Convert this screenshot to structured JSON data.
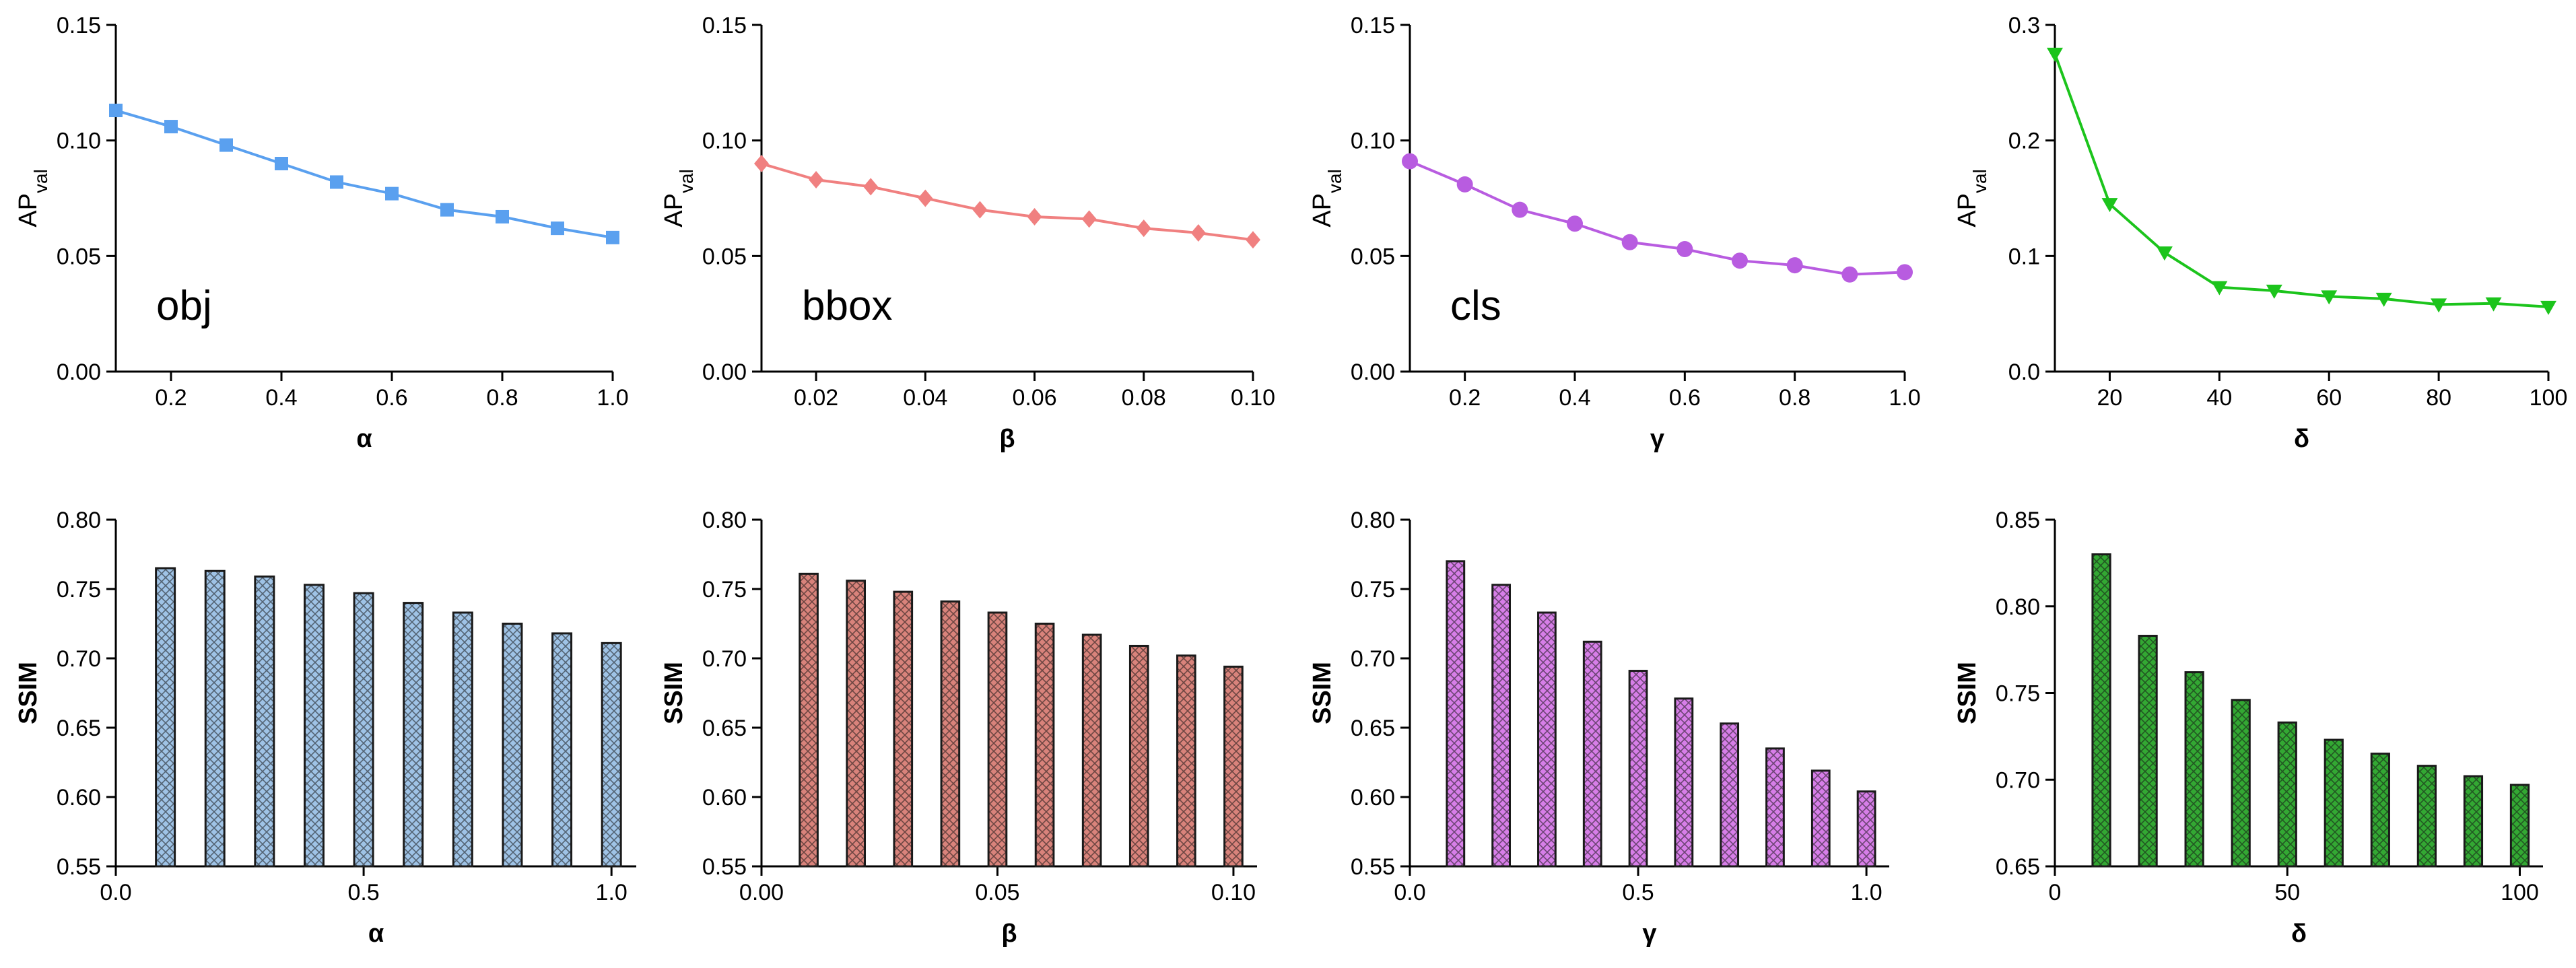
{
  "colors": {
    "blue": "#5aa0ef",
    "red": "#f08080",
    "purple": "#b85ce0",
    "green": "#1cc41c",
    "bar_blue": "#9fc3e6",
    "bar_red": "#d9837b",
    "bar_purple": "#d77ee8",
    "bar_green": "#33a833",
    "axis": "#000000"
  },
  "chart_data": [
    {
      "id": "line-alpha",
      "type": "line",
      "marker": "square",
      "color_key": "blue",
      "annotation": "obj",
      "x": [
        0.1,
        0.2,
        0.3,
        0.4,
        0.5,
        0.6,
        0.7,
        0.8,
        0.9,
        1.0
      ],
      "values": [
        0.113,
        0.106,
        0.098,
        0.09,
        0.082,
        0.077,
        0.07,
        0.067,
        0.062,
        0.058
      ],
      "xlim": [
        0.1,
        1.0
      ],
      "ylim": [
        0,
        0.15
      ],
      "xticks": [
        "0.2",
        "0.4",
        "0.6",
        "0.8",
        "1.0"
      ],
      "xtick_vals": [
        0.2,
        0.4,
        0.6,
        0.8,
        1.0
      ],
      "yticks": [
        "0.00",
        "0.05",
        "0.10",
        "0.15"
      ],
      "ytick_vals": [
        0,
        0.05,
        0.1,
        0.15
      ],
      "xlabel": "α",
      "ylabel_main": "AP",
      "ylabel_sub": "val"
    },
    {
      "id": "line-beta",
      "type": "line",
      "marker": "diamond",
      "color_key": "red",
      "annotation": "bbox",
      "x": [
        0.01,
        0.02,
        0.03,
        0.04,
        0.05,
        0.06,
        0.07,
        0.08,
        0.09,
        0.1
      ],
      "values": [
        0.09,
        0.083,
        0.08,
        0.075,
        0.07,
        0.067,
        0.066,
        0.062,
        0.06,
        0.057
      ],
      "xlim": [
        0.01,
        0.1
      ],
      "ylim": [
        0,
        0.15
      ],
      "xticks": [
        "0.02",
        "0.04",
        "0.06",
        "0.08",
        "0.10"
      ],
      "xtick_vals": [
        0.02,
        0.04,
        0.06,
        0.08,
        0.1
      ],
      "yticks": [
        "0.00",
        "0.05",
        "0.10",
        "0.15"
      ],
      "ytick_vals": [
        0,
        0.05,
        0.1,
        0.15
      ],
      "xlabel": "β",
      "ylabel_main": "AP",
      "ylabel_sub": "val"
    },
    {
      "id": "line-gamma",
      "type": "line",
      "marker": "circle",
      "color_key": "purple",
      "annotation": "cls",
      "x": [
        0.1,
        0.2,
        0.3,
        0.4,
        0.5,
        0.6,
        0.7,
        0.8,
        0.9,
        1.0
      ],
      "values": [
        0.091,
        0.081,
        0.07,
        0.064,
        0.056,
        0.053,
        0.048,
        0.046,
        0.042,
        0.043
      ],
      "xlim": [
        0.1,
        1.0
      ],
      "ylim": [
        0,
        0.15
      ],
      "xticks": [
        "0.2",
        "0.4",
        "0.6",
        "0.8",
        "1.0"
      ],
      "xtick_vals": [
        0.2,
        0.4,
        0.6,
        0.8,
        1.0
      ],
      "yticks": [
        "0.00",
        "0.05",
        "0.10",
        "0.15"
      ],
      "ytick_vals": [
        0,
        0.05,
        0.1,
        0.15
      ],
      "xlabel": "γ",
      "ylabel_main": "AP",
      "ylabel_sub": "val"
    },
    {
      "id": "line-delta",
      "type": "line",
      "marker": "triangle-down",
      "color_key": "green",
      "annotation": "",
      "x": [
        10,
        20,
        30,
        40,
        50,
        60,
        70,
        80,
        90,
        100
      ],
      "values": [
        0.275,
        0.145,
        0.103,
        0.073,
        0.07,
        0.065,
        0.063,
        0.058,
        0.059,
        0.056
      ],
      "xlim": [
        10,
        100
      ],
      "ylim": [
        0,
        0.3
      ],
      "xticks": [
        "20",
        "40",
        "60",
        "80",
        "100"
      ],
      "xtick_vals": [
        20,
        40,
        60,
        80,
        100
      ],
      "yticks": [
        "0.0",
        "0.1",
        "0.2",
        "0.3"
      ],
      "ytick_vals": [
        0,
        0.1,
        0.2,
        0.3
      ],
      "xlabel": "δ",
      "ylabel_main": "AP",
      "ylabel_sub": "val"
    },
    {
      "id": "bar-alpha",
      "type": "bar",
      "color_key": "bar_blue",
      "x": [
        0.1,
        0.2,
        0.3,
        0.4,
        0.5,
        0.6,
        0.7,
        0.8,
        0.9,
        1.0
      ],
      "values": [
        0.765,
        0.763,
        0.759,
        0.753,
        0.747,
        0.74,
        0.733,
        0.725,
        0.718,
        0.711
      ],
      "xlim": [
        0,
        1.05
      ],
      "ylim": [
        0.55,
        0.8
      ],
      "xticks": [
        "0.0",
        "0.5",
        "1.0"
      ],
      "xtick_vals": [
        0,
        0.5,
        1.0
      ],
      "yticks": [
        "0.55",
        "0.60",
        "0.65",
        "0.70",
        "0.75",
        "0.80"
      ],
      "ytick_vals": [
        0.55,
        0.6,
        0.65,
        0.7,
        0.75,
        0.8
      ],
      "xlabel": "α",
      "ylabel_main": "SSIM",
      "ylabel_sub": ""
    },
    {
      "id": "bar-beta",
      "type": "bar",
      "color_key": "bar_red",
      "x": [
        0.01,
        0.02,
        0.03,
        0.04,
        0.05,
        0.06,
        0.07,
        0.08,
        0.09,
        0.1
      ],
      "values": [
        0.761,
        0.756,
        0.748,
        0.741,
        0.733,
        0.725,
        0.717,
        0.709,
        0.702,
        0.694
      ],
      "xlim": [
        0,
        0.105
      ],
      "ylim": [
        0.55,
        0.8
      ],
      "xticks": [
        "0.00",
        "0.05",
        "0.10"
      ],
      "xtick_vals": [
        0,
        0.05,
        0.1
      ],
      "yticks": [
        "0.55",
        "0.60",
        "0.65",
        "0.70",
        "0.75",
        "0.80"
      ],
      "ytick_vals": [
        0.55,
        0.6,
        0.65,
        0.7,
        0.75,
        0.8
      ],
      "xlabel": "β",
      "ylabel_main": "SSIM",
      "ylabel_sub": ""
    },
    {
      "id": "bar-gamma",
      "type": "bar",
      "color_key": "bar_purple",
      "x": [
        0.1,
        0.2,
        0.3,
        0.4,
        0.5,
        0.6,
        0.7,
        0.8,
        0.9,
        1.0
      ],
      "values": [
        0.77,
        0.753,
        0.733,
        0.712,
        0.691,
        0.671,
        0.653,
        0.635,
        0.619,
        0.604
      ],
      "xlim": [
        0,
        1.05
      ],
      "ylim": [
        0.55,
        0.8
      ],
      "xticks": [
        "0.0",
        "0.5",
        "1.0"
      ],
      "xtick_vals": [
        0,
        0.5,
        1.0
      ],
      "yticks": [
        "0.55",
        "0.60",
        "0.65",
        "0.70",
        "0.75",
        "0.80"
      ],
      "ytick_vals": [
        0.55,
        0.6,
        0.65,
        0.7,
        0.75,
        0.8
      ],
      "xlabel": "γ",
      "ylabel_main": "SSIM",
      "ylabel_sub": ""
    },
    {
      "id": "bar-delta",
      "type": "bar",
      "color_key": "bar_green",
      "x": [
        10,
        20,
        30,
        40,
        50,
        60,
        70,
        80,
        90,
        100
      ],
      "values": [
        0.83,
        0.783,
        0.762,
        0.746,
        0.733,
        0.723,
        0.715,
        0.708,
        0.702,
        0.697
      ],
      "xlim": [
        0,
        105
      ],
      "ylim": [
        0.65,
        0.85
      ],
      "xticks": [
        "0",
        "50",
        "100"
      ],
      "xtick_vals": [
        0,
        50,
        100
      ],
      "yticks": [
        "0.65",
        "0.70",
        "0.75",
        "0.80",
        "0.85"
      ],
      "ytick_vals": [
        0.65,
        0.7,
        0.75,
        0.8,
        0.85
      ],
      "xlabel": "δ",
      "ylabel_main": "SSIM",
      "ylabel_sub": ""
    }
  ]
}
